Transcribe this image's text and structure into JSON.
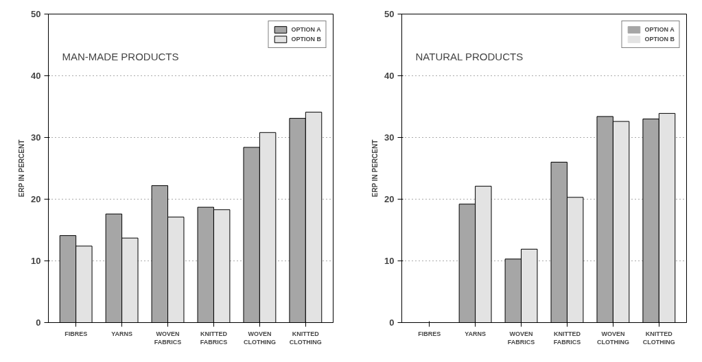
{
  "chart_data": [
    {
      "type": "bar",
      "title": "MAN-MADE PRODUCTS",
      "ylabel": "ERP IN PERCENT",
      "categories": [
        "FIBRES",
        "YARNS",
        "WOVEN FABRICS",
        "KNITTED FABRICS",
        "WOVEN CLOTHING",
        "KNITTED CLOTHING"
      ],
      "series": [
        {
          "name": "OPTION A",
          "color": "#a6a6a6",
          "values": [
            14.1,
            17.6,
            22.2,
            18.7,
            28.4,
            33.1
          ]
        },
        {
          "name": "OPTION B",
          "color": "#e3e3e3",
          "values": [
            12.4,
            13.7,
            17.1,
            18.3,
            30.8,
            34.1
          ]
        }
      ],
      "ylim": [
        0,
        50
      ],
      "yticks": [
        0,
        10,
        20,
        30,
        40,
        50
      ],
      "grid": "y",
      "legend": "top right"
    },
    {
      "type": "bar",
      "title": "NATURAL PRODUCTS",
      "ylabel": "ERP IN PERCENT",
      "categories": [
        "FIBRES",
        "YARNS",
        "WOVEN FABRICS",
        "KNITTED FABRICS",
        "WOVEN CLOTHING",
        "KNITTED CLOTHING"
      ],
      "series": [
        {
          "name": "OPTION A",
          "color": "#a6a6a6",
          "values": [
            0,
            19.2,
            10.3,
            26.0,
            33.4,
            33.0
          ]
        },
        {
          "name": "OPTION B",
          "color": "#e3e3e3",
          "values": [
            0,
            22.1,
            11.9,
            20.3,
            32.6,
            33.9
          ]
        }
      ],
      "ylim": [
        0,
        50
      ],
      "yticks": [
        0,
        10,
        20,
        30,
        40,
        50
      ],
      "grid": "y",
      "legend": "top right"
    }
  ]
}
